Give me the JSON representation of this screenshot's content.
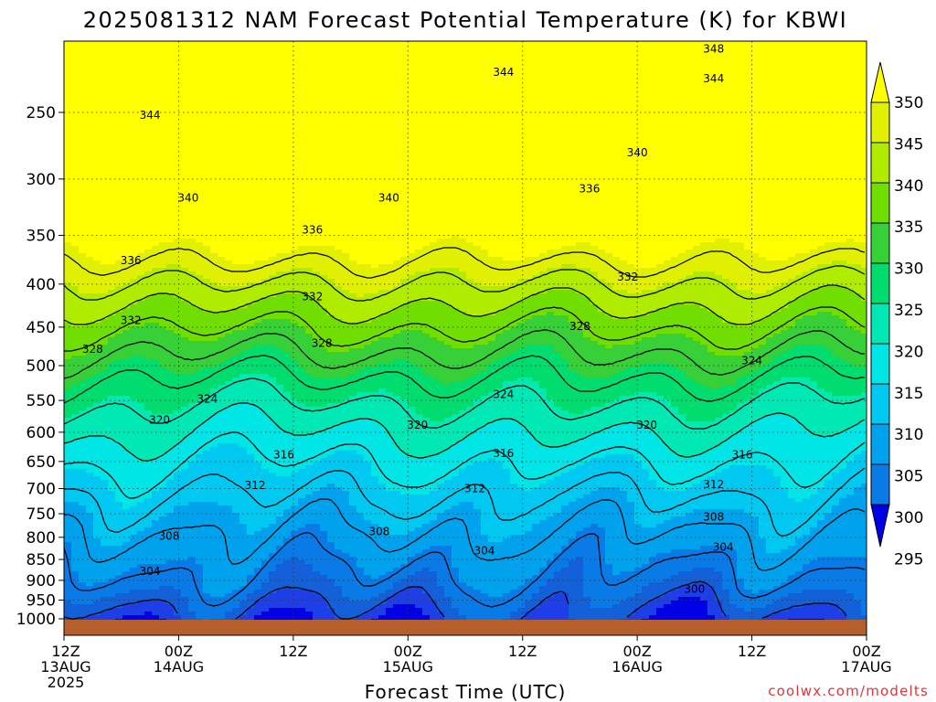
{
  "chart_data": {
    "type": "heatmap",
    "title": "2025081312 NAM Forecast Potential Temperature (K) for KBWI",
    "xlabel": "Forecast Time (UTC)",
    "ylabel": "",
    "credit": "coolwx.com/modelts",
    "x_ticks": [
      {
        "lines": [
          "12Z",
          "13AUG",
          "2025"
        ]
      },
      {
        "lines": [
          "00Z",
          "14AUG"
        ]
      },
      {
        "lines": [
          "12Z"
        ]
      },
      {
        "lines": [
          "00Z",
          "15AUG"
        ]
      },
      {
        "lines": [
          "12Z"
        ]
      },
      {
        "lines": [
          "00Z",
          "16AUG"
        ]
      },
      {
        "lines": [
          "12Z"
        ]
      },
      {
        "lines": [
          "00Z",
          "17AUG"
        ]
      }
    ],
    "x_range_hours": [
      0,
      84
    ],
    "y_ticks": [
      250,
      300,
      350,
      400,
      450,
      500,
      550,
      600,
      650,
      700,
      750,
      800,
      850,
      900,
      950,
      1000
    ],
    "y_range_hpa": [
      200,
      1000
    ],
    "y_scale": "log-pressure",
    "grid": true,
    "colorbar": {
      "placement": "right",
      "labels": [
        "350",
        "345",
        "340",
        "335",
        "330",
        "325",
        "320",
        "315",
        "310",
        "305",
        "300",
        "295"
      ],
      "colors": [
        "#ffff00",
        "#e0f000",
        "#b0ec00",
        "#70de00",
        "#38d038",
        "#00dc6e",
        "#00e8b4",
        "#00e6e6",
        "#00c8f0",
        "#00a2ee",
        "#0a7ae6",
        "#1460d8",
        "#1e3ee8",
        "#0000e6"
      ]
    },
    "contour_levels": [
      300,
      304,
      308,
      312,
      316,
      320,
      324,
      328,
      332,
      336,
      340,
      344,
      348
    ],
    "contour_labels": [
      {
        "text": "348",
        "x_hours": 68,
        "p_hpa": 210
      },
      {
        "text": "344",
        "x_hours": 46,
        "p_hpa": 224
      },
      {
        "text": "344",
        "x_hours": 68,
        "p_hpa": 228
      },
      {
        "text": "344",
        "x_hours": 9,
        "p_hpa": 252
      },
      {
        "text": "340",
        "x_hours": 60,
        "p_hpa": 279
      },
      {
        "text": "336",
        "x_hours": 55,
        "p_hpa": 308
      },
      {
        "text": "340",
        "x_hours": 13,
        "p_hpa": 316
      },
      {
        "text": "340",
        "x_hours": 34,
        "p_hpa": 316
      },
      {
        "text": "336",
        "x_hours": 26,
        "p_hpa": 345
      },
      {
        "text": "336",
        "x_hours": 7,
        "p_hpa": 375
      },
      {
        "text": "332",
        "x_hours": 59,
        "p_hpa": 392
      },
      {
        "text": "332",
        "x_hours": 26,
        "p_hpa": 414
      },
      {
        "text": "332",
        "x_hours": 7,
        "p_hpa": 442
      },
      {
        "text": "328",
        "x_hours": 54,
        "p_hpa": 449
      },
      {
        "text": "328",
        "x_hours": 27,
        "p_hpa": 470
      },
      {
        "text": "328",
        "x_hours": 3,
        "p_hpa": 478
      },
      {
        "text": "324",
        "x_hours": 72,
        "p_hpa": 493
      },
      {
        "text": "324",
        "x_hours": 46,
        "p_hpa": 541
      },
      {
        "text": "324",
        "x_hours": 15,
        "p_hpa": 548
      },
      {
        "text": "320",
        "x_hours": 10,
        "p_hpa": 580
      },
      {
        "text": "320",
        "x_hours": 37,
        "p_hpa": 588
      },
      {
        "text": "320",
        "x_hours": 61,
        "p_hpa": 588
      },
      {
        "text": "316",
        "x_hours": 23,
        "p_hpa": 638
      },
      {
        "text": "316",
        "x_hours": 46,
        "p_hpa": 636
      },
      {
        "text": "316",
        "x_hours": 71,
        "p_hpa": 638
      },
      {
        "text": "312",
        "x_hours": 20,
        "p_hpa": 694
      },
      {
        "text": "312",
        "x_hours": 43,
        "p_hpa": 700
      },
      {
        "text": "312",
        "x_hours": 68,
        "p_hpa": 692
      },
      {
        "text": "308",
        "x_hours": 68,
        "p_hpa": 757
      },
      {
        "text": "308",
        "x_hours": 33,
        "p_hpa": 787
      },
      {
        "text": "308",
        "x_hours": 11,
        "p_hpa": 797
      },
      {
        "text": "304",
        "x_hours": 44,
        "p_hpa": 830
      },
      {
        "text": "304",
        "x_hours": 69,
        "p_hpa": 822
      },
      {
        "text": "304",
        "x_hours": 9,
        "p_hpa": 878
      },
      {
        "text": "300",
        "x_hours": 66,
        "p_hpa": 922
      }
    ]
  }
}
